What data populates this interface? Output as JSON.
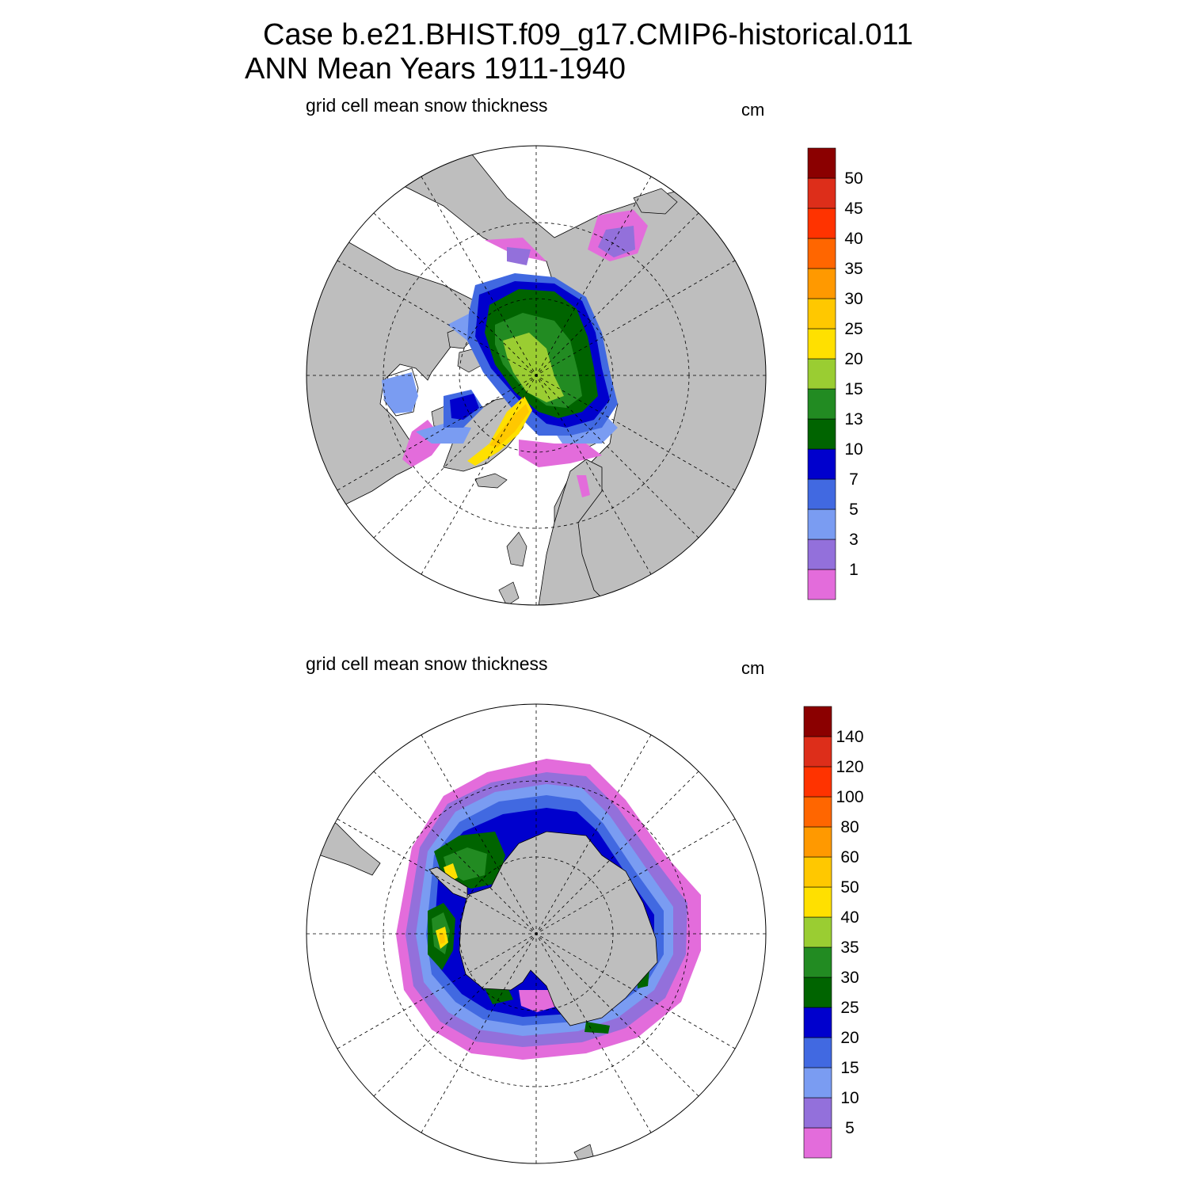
{
  "header": {
    "line1": "Case b.e21.BHIST.f09_g17.CMIP6-historical.011",
    "line2": "ANN Mean     Years 1911-1940"
  },
  "panels": [
    {
      "id": "arctic",
      "hemisphere": "north",
      "title": "grid cell mean snow thickness",
      "units": "cm",
      "colorbar": {
        "colors": [
          "#e36cdb",
          "#9370db",
          "#7a9cf2",
          "#4169e1",
          "#0000cd",
          "#006400",
          "#228b22",
          "#9acd32",
          "#ffe000",
          "#ffc800",
          "#ff9900",
          "#ff6600",
          "#ff3300",
          "#dd2e1a",
          "#8b0000"
        ],
        "labels": [
          "1",
          "3",
          "5",
          "7",
          "10",
          "13",
          "15",
          "20",
          "25",
          "30",
          "35",
          "40",
          "45",
          "50"
        ]
      }
    },
    {
      "id": "antarctic",
      "hemisphere": "south",
      "title": "grid cell mean snow thickness",
      "units": "cm",
      "colorbar": {
        "colors": [
          "#e36cdb",
          "#9370db",
          "#7a9cf2",
          "#4169e1",
          "#0000cd",
          "#006400",
          "#228b22",
          "#9acd32",
          "#ffe000",
          "#ffc800",
          "#ff9900",
          "#ff6600",
          "#ff3300",
          "#dd2e1a",
          "#8b0000"
        ],
        "labels": [
          "5",
          "10",
          "15",
          "20",
          "25",
          "30",
          "35",
          "40",
          "50",
          "60",
          "80",
          "100",
          "120",
          "140"
        ]
      }
    }
  ],
  "land_color": "#bebebe",
  "ocean_color": "#ffffff"
}
